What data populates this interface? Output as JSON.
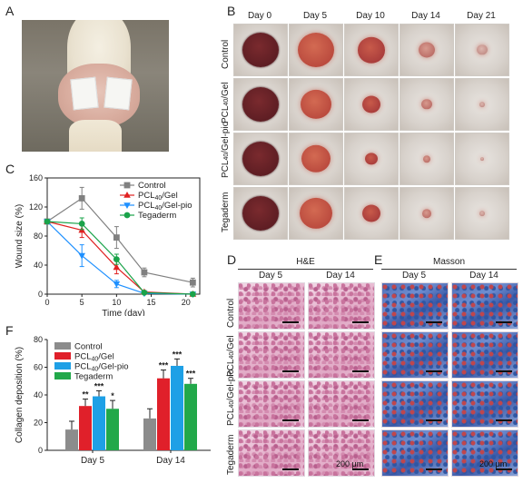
{
  "panels": {
    "A": "A",
    "B": "B",
    "C": "C",
    "D": "D",
    "E": "E",
    "F": "F"
  },
  "panel_b": {
    "days": [
      "Day 0",
      "Day 5",
      "Day 10",
      "Day 14",
      "Day 21"
    ],
    "groups": [
      "Control",
      "PCL40/Gel",
      "PCL40/Gel-pio",
      "Tegaderm"
    ]
  },
  "panel_d": {
    "stain": "H&E",
    "days": [
      "Day 5",
      "Day 14"
    ],
    "groups": [
      "Control",
      "PCL40/Gel",
      "PCL40/Gel-pio",
      "Tegaderm"
    ],
    "scale": "200 μm"
  },
  "panel_e": {
    "stain": "Masson",
    "days": [
      "Day 5",
      "Day 14"
    ],
    "scale": "200 μm"
  },
  "chart_data": [
    {
      "panel": "C",
      "type": "line",
      "xlabel": "Time (day)",
      "ylabel": "Wound size (%)",
      "xlim": [
        0,
        22
      ],
      "ylim": [
        0,
        160
      ],
      "xticks": [
        0,
        5,
        10,
        15,
        20
      ],
      "yticks": [
        0,
        40,
        80,
        120,
        160
      ],
      "legend_position": "top-right",
      "series": [
        {
          "name": "Control",
          "color": "#808080",
          "marker": "square",
          "x": [
            0,
            5,
            10,
            14,
            21
          ],
          "y": [
            100,
            132,
            78,
            30,
            16
          ],
          "err": [
            0,
            15,
            15,
            6,
            6
          ]
        },
        {
          "name": "PCL40/Gel",
          "color": "#e02020",
          "marker": "triangle-up",
          "x": [
            0,
            5,
            10,
            14,
            21
          ],
          "y": [
            100,
            88,
            37,
            3,
            0
          ],
          "err": [
            0,
            10,
            9,
            2,
            0
          ]
        },
        {
          "name": "PCL40/Gel-pio",
          "color": "#1e90ff",
          "marker": "triangle-down",
          "x": [
            0,
            5,
            10,
            14,
            21
          ],
          "y": [
            100,
            53,
            14,
            1,
            0
          ],
          "err": [
            0,
            15,
            5,
            1,
            0
          ]
        },
        {
          "name": "Tegaderm",
          "color": "#1aa34a",
          "marker": "circle",
          "x": [
            0,
            5,
            10,
            14,
            21
          ],
          "y": [
            100,
            97,
            48,
            2,
            0
          ],
          "err": [
            0,
            8,
            7,
            1,
            0
          ]
        }
      ]
    },
    {
      "panel": "F",
      "type": "bar",
      "ylabel": "Collagen deposition (%)",
      "categories": [
        "Day 5",
        "Day 14"
      ],
      "ylim": [
        0,
        80
      ],
      "yticks": [
        0,
        20,
        40,
        60,
        80
      ],
      "legend_position": "top-left",
      "series": [
        {
          "name": "Control",
          "color": "#8c8c8c",
          "values": [
            15,
            23
          ],
          "err": [
            6,
            7
          ],
          "sig": [
            "",
            ""
          ]
        },
        {
          "name": "PCL40/Gel",
          "color": "#e0202a",
          "values": [
            32,
            52
          ],
          "err": [
            5,
            6
          ],
          "sig": [
            "**",
            "***"
          ]
        },
        {
          "name": "PCL40/Gel-pio",
          "color": "#1ea0e6",
          "values": [
            39,
            61
          ],
          "err": [
            4,
            5
          ],
          "sig": [
            "***",
            "***"
          ]
        },
        {
          "name": "Tegaderm",
          "color": "#22a84a",
          "values": [
            30,
            48
          ],
          "err": [
            6,
            4
          ],
          "sig": [
            "*",
            "***"
          ]
        }
      ]
    }
  ]
}
